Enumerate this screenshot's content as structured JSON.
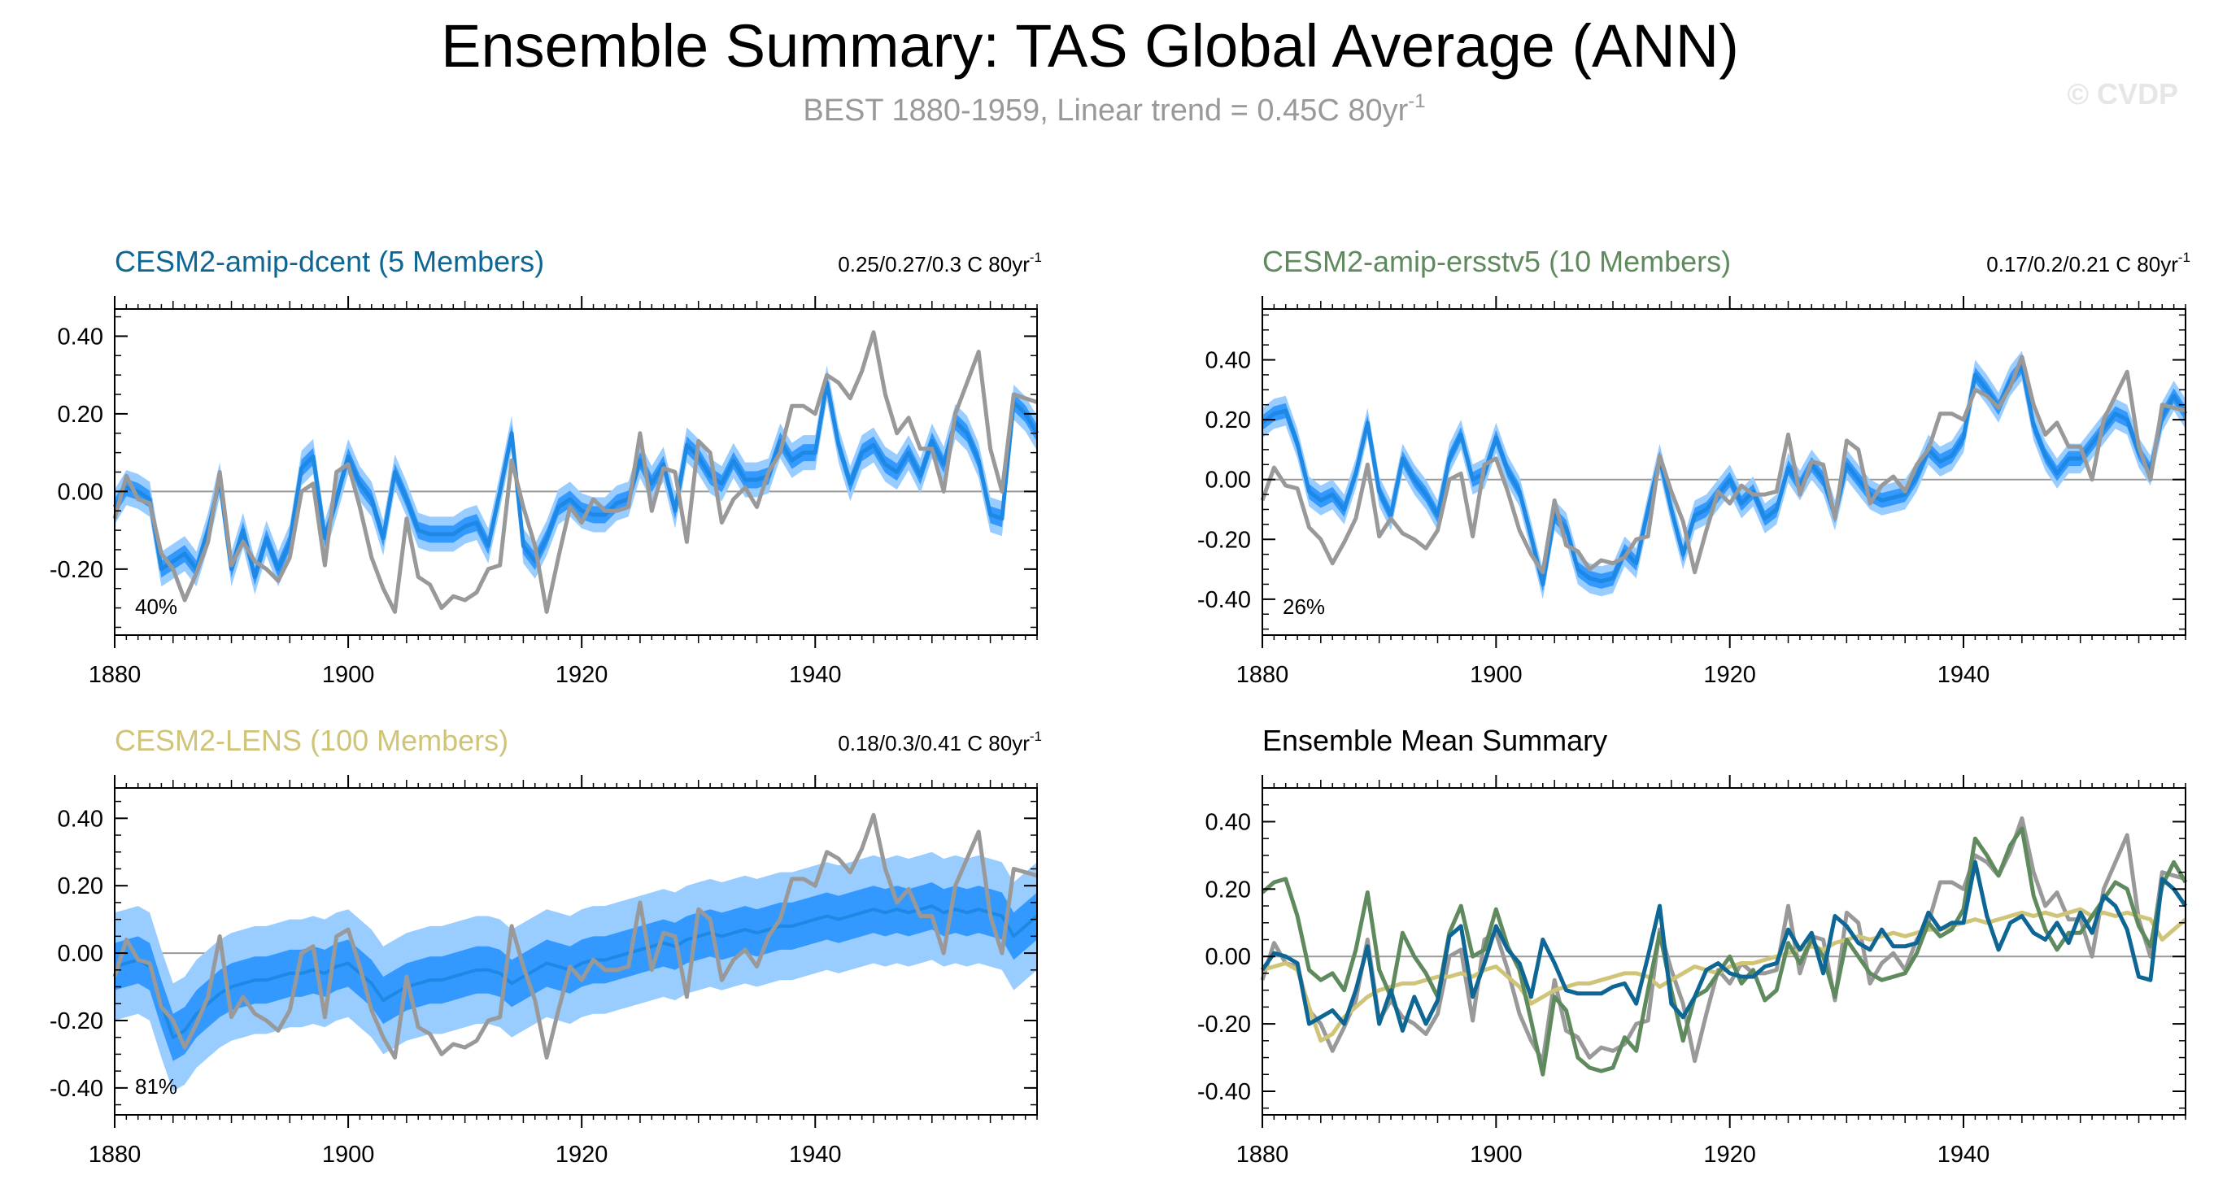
{
  "header": {
    "title": "Ensemble Summary: TAS Global Average (ANN)",
    "subtitle": "BEST 1880-1959, Linear trend = 0.45C 80yr",
    "subtitle_sup": "-1",
    "watermark": "© CVDP"
  },
  "colors": {
    "obs": "#999999",
    "band_outer": "#99ccff",
    "band_inner": "#3399ff",
    "ens_line": "#1e88e5",
    "dcent": "#0d6694",
    "ersstv5": "#5e8a5e",
    "lens": "#cfc478",
    "subtitle": "#999999"
  },
  "chart_data": [
    {
      "type": "line",
      "panel": "top-left",
      "title": "CESM2-amip-dcent (5 Members)",
      "title_color": "#0d6694",
      "trend": "0.25/0.27/0.3 C 80yr",
      "trend_sup": "-1",
      "percent": "40%",
      "xlim": [
        1880,
        1959
      ],
      "ylim": [
        -0.37,
        0.47
      ],
      "yticks": [
        -0.2,
        0.0,
        0.2,
        0.4
      ],
      "ytick_labels": [
        "-0.20",
        "0.00",
        "0.20",
        "0.40"
      ],
      "xticks": [
        1880,
        1900,
        1920,
        1940
      ],
      "xtick_labels": [
        "1880",
        "1900",
        "1920",
        "1940"
      ],
      "band": "ensemble-spread",
      "series": [
        {
          "role": "ensemble-mean",
          "values": [
            -0.04,
            0.01,
            0.0,
            -0.02,
            -0.2,
            -0.18,
            -0.16,
            -0.2,
            -0.1,
            0.03,
            -0.2,
            -0.1,
            -0.22,
            -0.12,
            -0.2,
            -0.13,
            0.06,
            0.09,
            -0.12,
            -0.02,
            0.09,
            0.02,
            -0.02,
            -0.12,
            0.05,
            -0.02,
            -0.1,
            -0.11,
            -0.11,
            -0.11,
            -0.09,
            -0.08,
            -0.14,
            0.0,
            0.15,
            -0.14,
            -0.18,
            -0.12,
            -0.04,
            -0.02,
            -0.05,
            -0.06,
            -0.06,
            -0.03,
            -0.02,
            0.08,
            0.02,
            0.07,
            -0.05,
            0.12,
            0.09,
            0.04,
            0.02,
            0.08,
            0.03,
            0.03,
            0.04,
            0.13,
            0.08,
            0.1,
            0.1,
            0.28,
            0.12,
            0.02,
            0.1,
            0.12,
            0.07,
            0.05,
            0.1,
            0.04,
            0.13,
            0.07,
            0.18,
            0.15,
            0.08,
            -0.06,
            -0.07,
            0.23,
            0.2,
            0.15
          ]
        },
        {
          "role": "observed",
          "values": [
            -0.07,
            0.04,
            -0.02,
            -0.03,
            -0.16,
            -0.2,
            -0.28,
            -0.21,
            -0.13,
            0.05,
            -0.19,
            -0.13,
            -0.18,
            -0.2,
            -0.23,
            -0.17,
            0.0,
            0.02,
            -0.19,
            0.05,
            0.07,
            -0.04,
            -0.17,
            -0.25,
            -0.31,
            -0.07,
            -0.22,
            -0.24,
            -0.3,
            -0.27,
            -0.28,
            -0.26,
            -0.2,
            -0.19,
            0.08,
            -0.04,
            -0.14,
            -0.31,
            -0.17,
            -0.04,
            -0.08,
            -0.02,
            -0.05,
            -0.05,
            -0.04,
            0.15,
            -0.05,
            0.06,
            0.05,
            -0.13,
            0.13,
            0.1,
            -0.08,
            -0.02,
            0.01,
            -0.04,
            0.05,
            0.1,
            0.22,
            0.22,
            0.2,
            0.3,
            0.28,
            0.24,
            0.31,
            0.41,
            0.25,
            0.15,
            0.19,
            0.11,
            0.11,
            0.0,
            0.2,
            0.28,
            0.36,
            0.11,
            0.0,
            0.25,
            0.24,
            0.23
          ]
        }
      ]
    },
    {
      "type": "line",
      "panel": "top-right",
      "title": "CESM2-amip-ersstv5 (10 Members)",
      "title_color": "#5e8a5e",
      "trend": "0.17/0.2/0.21 C 80yr",
      "trend_sup": "-1",
      "percent": "26%",
      "xlim": [
        1880,
        1959
      ],
      "ylim": [
        -0.52,
        0.57
      ],
      "yticks": [
        -0.4,
        -0.2,
        0.0,
        0.2,
        0.4
      ],
      "ytick_labels": [
        "-0.40",
        "-0.20",
        "0.00",
        "0.20",
        "0.40"
      ],
      "xticks": [
        1880,
        1900,
        1920,
        1940
      ],
      "xtick_labels": [
        "1880",
        "1900",
        "1920",
        "1940"
      ],
      "band": "ensemble-spread",
      "series": [
        {
          "role": "ensemble-mean",
          "values": [
            0.19,
            0.22,
            0.23,
            0.12,
            -0.04,
            -0.07,
            -0.05,
            -0.1,
            0.02,
            0.19,
            -0.04,
            -0.12,
            0.07,
            0.0,
            -0.05,
            -0.12,
            0.07,
            0.15,
            0.0,
            0.02,
            0.14,
            0.03,
            -0.04,
            -0.19,
            -0.35,
            -0.12,
            -0.16,
            -0.3,
            -0.33,
            -0.34,
            -0.33,
            -0.24,
            -0.28,
            -0.1,
            0.07,
            -0.1,
            -0.25,
            -0.12,
            -0.1,
            -0.05,
            0.0,
            -0.08,
            -0.04,
            -0.13,
            -0.1,
            0.04,
            -0.02,
            0.05,
            0.0,
            -0.12,
            0.05,
            0.0,
            -0.05,
            -0.07,
            -0.06,
            -0.05,
            0.01,
            0.1,
            0.06,
            0.08,
            0.14,
            0.35,
            0.3,
            0.24,
            0.33,
            0.38,
            0.18,
            0.08,
            0.02,
            0.07,
            0.07,
            0.12,
            0.17,
            0.22,
            0.2,
            0.09,
            0.03,
            0.21,
            0.28,
            0.22
          ]
        },
        {
          "role": "observed",
          "values": [
            -0.07,
            0.04,
            -0.02,
            -0.03,
            -0.16,
            -0.2,
            -0.28,
            -0.21,
            -0.13,
            0.05,
            -0.19,
            -0.13,
            -0.18,
            -0.2,
            -0.23,
            -0.17,
            0.0,
            0.02,
            -0.19,
            0.05,
            0.07,
            -0.04,
            -0.17,
            -0.25,
            -0.31,
            -0.07,
            -0.22,
            -0.24,
            -0.3,
            -0.27,
            -0.28,
            -0.26,
            -0.2,
            -0.19,
            0.08,
            -0.04,
            -0.14,
            -0.31,
            -0.17,
            -0.04,
            -0.08,
            -0.02,
            -0.05,
            -0.05,
            -0.04,
            0.15,
            -0.05,
            0.06,
            0.05,
            -0.13,
            0.13,
            0.1,
            -0.08,
            -0.02,
            0.01,
            -0.04,
            0.05,
            0.1,
            0.22,
            0.22,
            0.2,
            0.3,
            0.28,
            0.24,
            0.31,
            0.41,
            0.25,
            0.15,
            0.19,
            0.11,
            0.11,
            0.0,
            0.2,
            0.28,
            0.36,
            0.11,
            0.0,
            0.25,
            0.24,
            0.23
          ]
        }
      ]
    },
    {
      "type": "line",
      "panel": "bottom-left",
      "title": "CESM2-LENS (100 Members)",
      "title_color": "#cfc478",
      "trend": "0.18/0.3/0.41 C 80yr",
      "trend_sup": "-1",
      "percent": "81%",
      "xlim": [
        1880,
        1959
      ],
      "ylim": [
        -0.48,
        0.49
      ],
      "yticks": [
        -0.4,
        -0.2,
        0.0,
        0.2,
        0.4
      ],
      "ytick_labels": [
        "-0.40",
        "-0.20",
        "0.00",
        "0.20",
        "0.40"
      ],
      "xticks": [
        1880,
        1900,
        1920,
        1940
      ],
      "xtick_labels": [
        "1880",
        "1900",
        "1920",
        "1940"
      ],
      "band": "ensemble-spread",
      "series": [
        {
          "role": "ensemble-mean",
          "values": [
            -0.04,
            -0.03,
            -0.02,
            -0.04,
            -0.15,
            -0.25,
            -0.23,
            -0.18,
            -0.15,
            -0.12,
            -0.1,
            -0.09,
            -0.08,
            -0.08,
            -0.07,
            -0.06,
            -0.06,
            -0.05,
            -0.06,
            -0.04,
            -0.03,
            -0.06,
            -0.09,
            -0.14,
            -0.12,
            -0.1,
            -0.09,
            -0.08,
            -0.08,
            -0.07,
            -0.06,
            -0.05,
            -0.05,
            -0.06,
            -0.09,
            -0.07,
            -0.05,
            -0.03,
            -0.04,
            -0.05,
            -0.03,
            -0.02,
            -0.02,
            -0.01,
            0.0,
            0.01,
            0.02,
            0.03,
            0.02,
            0.04,
            0.05,
            0.06,
            0.05,
            0.06,
            0.07,
            0.06,
            0.07,
            0.08,
            0.08,
            0.09,
            0.1,
            0.11,
            0.1,
            0.11,
            0.12,
            0.13,
            0.12,
            0.13,
            0.12,
            0.13,
            0.14,
            0.12,
            0.13,
            0.12,
            0.13,
            0.12,
            0.11,
            0.05,
            0.08,
            0.11
          ]
        },
        {
          "role": "observed",
          "values": [
            -0.07,
            0.04,
            -0.02,
            -0.03,
            -0.16,
            -0.2,
            -0.28,
            -0.21,
            -0.13,
            0.05,
            -0.19,
            -0.13,
            -0.18,
            -0.2,
            -0.23,
            -0.17,
            0.0,
            0.02,
            -0.19,
            0.05,
            0.07,
            -0.04,
            -0.17,
            -0.25,
            -0.31,
            -0.07,
            -0.22,
            -0.24,
            -0.3,
            -0.27,
            -0.28,
            -0.26,
            -0.2,
            -0.19,
            0.08,
            -0.04,
            -0.14,
            -0.31,
            -0.17,
            -0.04,
            -0.08,
            -0.02,
            -0.05,
            -0.05,
            -0.04,
            0.15,
            -0.05,
            0.06,
            0.05,
            -0.13,
            0.13,
            0.1,
            -0.08,
            -0.02,
            0.01,
            -0.04,
            0.05,
            0.1,
            0.22,
            0.22,
            0.2,
            0.3,
            0.28,
            0.24,
            0.31,
            0.41,
            0.25,
            0.15,
            0.19,
            0.11,
            0.11,
            0.0,
            0.2,
            0.28,
            0.36,
            0.11,
            0.0,
            0.25,
            0.24,
            0.23
          ]
        }
      ]
    },
    {
      "type": "line",
      "panel": "bottom-right",
      "title": "Ensemble Mean Summary",
      "title_color": "#000000",
      "xlim": [
        1880,
        1959
      ],
      "ylim": [
        -0.47,
        0.5
      ],
      "yticks": [
        -0.4,
        -0.2,
        0.0,
        0.2,
        0.4
      ],
      "ytick_labels": [
        "-0.40",
        "-0.20",
        "0.00",
        "0.20",
        "0.40"
      ],
      "xticks": [
        1880,
        1900,
        1920,
        1940
      ],
      "xtick_labels": [
        "1880",
        "1900",
        "1920",
        "1940"
      ],
      "series": [
        {
          "role": "observed",
          "values": [
            -0.07,
            0.04,
            -0.02,
            -0.03,
            -0.16,
            -0.2,
            -0.28,
            -0.21,
            -0.13,
            0.05,
            -0.19,
            -0.13,
            -0.18,
            -0.2,
            -0.23,
            -0.17,
            0.0,
            0.02,
            -0.19,
            0.05,
            0.07,
            -0.04,
            -0.17,
            -0.25,
            -0.31,
            -0.07,
            -0.22,
            -0.24,
            -0.3,
            -0.27,
            -0.28,
            -0.26,
            -0.2,
            -0.19,
            0.08,
            -0.04,
            -0.14,
            -0.31,
            -0.17,
            -0.04,
            -0.08,
            -0.02,
            -0.05,
            -0.05,
            -0.04,
            0.15,
            -0.05,
            0.06,
            0.05,
            -0.13,
            0.13,
            0.1,
            -0.08,
            -0.02,
            0.01,
            -0.04,
            0.05,
            0.1,
            0.22,
            0.22,
            0.2,
            0.3,
            0.28,
            0.24,
            0.31,
            0.41,
            0.25,
            0.15,
            0.19,
            0.11,
            0.11,
            0.0,
            0.2,
            0.28,
            0.36,
            0.11,
            0.0,
            0.25,
            0.24,
            0.23
          ]
        },
        {
          "role": "dcent",
          "values": [
            -0.04,
            0.01,
            0.0,
            -0.02,
            -0.2,
            -0.18,
            -0.16,
            -0.2,
            -0.1,
            0.03,
            -0.2,
            -0.1,
            -0.22,
            -0.12,
            -0.2,
            -0.13,
            0.06,
            0.09,
            -0.12,
            -0.02,
            0.09,
            0.02,
            -0.02,
            -0.12,
            0.05,
            -0.02,
            -0.1,
            -0.11,
            -0.11,
            -0.11,
            -0.09,
            -0.08,
            -0.14,
            0.0,
            0.15,
            -0.14,
            -0.18,
            -0.12,
            -0.04,
            -0.02,
            -0.05,
            -0.06,
            -0.06,
            -0.03,
            -0.02,
            0.08,
            0.02,
            0.07,
            -0.05,
            0.12,
            0.09,
            0.04,
            0.02,
            0.08,
            0.03,
            0.03,
            0.04,
            0.13,
            0.08,
            0.1,
            0.1,
            0.28,
            0.12,
            0.02,
            0.1,
            0.12,
            0.07,
            0.05,
            0.1,
            0.04,
            0.13,
            0.07,
            0.18,
            0.15,
            0.08,
            -0.06,
            -0.07,
            0.23,
            0.2,
            0.15
          ]
        },
        {
          "role": "ersstv5",
          "values": [
            0.19,
            0.22,
            0.23,
            0.12,
            -0.04,
            -0.07,
            -0.05,
            -0.1,
            0.02,
            0.19,
            -0.04,
            -0.12,
            0.07,
            0.0,
            -0.05,
            -0.12,
            0.07,
            0.15,
            0.0,
            0.02,
            0.14,
            0.03,
            -0.04,
            -0.19,
            -0.35,
            -0.12,
            -0.16,
            -0.3,
            -0.33,
            -0.34,
            -0.33,
            -0.24,
            -0.28,
            -0.1,
            0.07,
            -0.1,
            -0.25,
            -0.12,
            -0.1,
            -0.05,
            0.0,
            -0.08,
            -0.04,
            -0.13,
            -0.1,
            0.04,
            -0.02,
            0.05,
            0.0,
            -0.12,
            0.05,
            0.0,
            -0.05,
            -0.07,
            -0.06,
            -0.05,
            0.01,
            0.1,
            0.06,
            0.08,
            0.14,
            0.35,
            0.3,
            0.24,
            0.33,
            0.38,
            0.18,
            0.08,
            0.02,
            0.07,
            0.07,
            0.12,
            0.17,
            0.22,
            0.2,
            0.09,
            0.03,
            0.21,
            0.28,
            0.22
          ]
        },
        {
          "role": "lens",
          "values": [
            -0.04,
            -0.03,
            -0.02,
            -0.04,
            -0.15,
            -0.25,
            -0.23,
            -0.18,
            -0.15,
            -0.12,
            -0.1,
            -0.09,
            -0.08,
            -0.08,
            -0.07,
            -0.06,
            -0.06,
            -0.05,
            -0.06,
            -0.04,
            -0.03,
            -0.06,
            -0.09,
            -0.14,
            -0.12,
            -0.1,
            -0.09,
            -0.08,
            -0.08,
            -0.07,
            -0.06,
            -0.05,
            -0.05,
            -0.06,
            -0.09,
            -0.07,
            -0.05,
            -0.03,
            -0.04,
            -0.05,
            -0.03,
            -0.02,
            -0.02,
            -0.01,
            0.0,
            0.01,
            0.02,
            0.03,
            0.02,
            0.04,
            0.05,
            0.06,
            0.05,
            0.06,
            0.07,
            0.06,
            0.07,
            0.08,
            0.08,
            0.09,
            0.1,
            0.11,
            0.1,
            0.11,
            0.12,
            0.13,
            0.12,
            0.13,
            0.12,
            0.13,
            0.14,
            0.12,
            0.13,
            0.12,
            0.13,
            0.12,
            0.11,
            0.05,
            0.08,
            0.11
          ]
        }
      ]
    }
  ]
}
